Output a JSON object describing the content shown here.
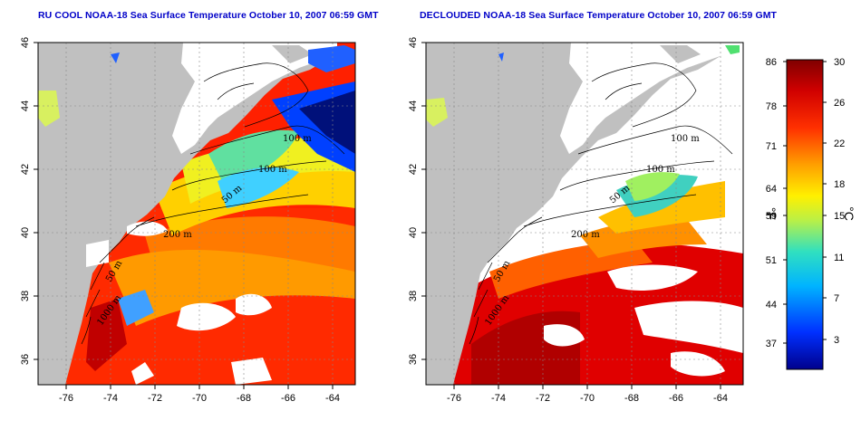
{
  "panels": [
    {
      "id": "left",
      "title": "RU COOL NOAA-18 Sea Surface Temperature October 10, 2007 06:59 GMT",
      "lon_ticks": [
        "-76",
        "-74",
        "-72",
        "-70",
        "-68",
        "-66",
        "-64"
      ],
      "lat_ticks": [
        "46",
        "44",
        "42",
        "40",
        "38",
        "36"
      ],
      "contour_labels": [
        "100 m",
        "100 m",
        "50 m",
        "200 m",
        "50 m",
        "1000 m"
      ]
    },
    {
      "id": "right",
      "title": "DECLOUDED NOAA-18 Sea Surface Temperature October 10, 2007 06:59 GMT",
      "lon_ticks": [
        "-76",
        "-74",
        "-72",
        "-70",
        "-68",
        "-66",
        "-64"
      ],
      "lat_ticks": [
        "46",
        "44",
        "42",
        "40",
        "38",
        "36"
      ],
      "contour_labels": [
        "100 m",
        "100 m",
        "50 m",
        "200 m",
        "50 m",
        "1000 m"
      ]
    }
  ],
  "colorbar": {
    "fahrenheit_ticks": [
      "86",
      "78",
      "71",
      "64",
      "59",
      "51",
      "44",
      "37"
    ],
    "celsius_ticks": [
      "30",
      "26",
      "22",
      "18",
      "15",
      "11",
      "7",
      "3"
    ],
    "fahrenheit_unit": "°F",
    "celsius_unit": "°C",
    "colors": [
      "#0000a0",
      "#0050ff",
      "#00c8ff",
      "#40e0a0",
      "#c8f040",
      "#ffe000",
      "#ff9000",
      "#ff3000",
      "#c00000",
      "#800000"
    ]
  },
  "land_color": "#c0c0c0",
  "cloud_color": "#ffffff"
}
